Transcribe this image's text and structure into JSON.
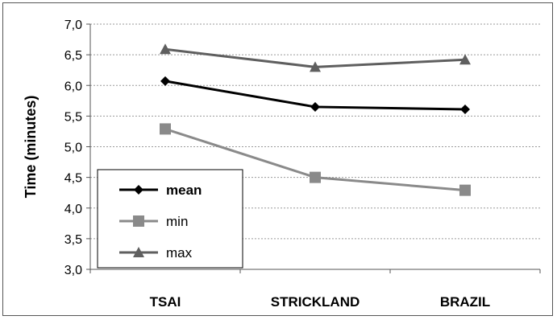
{
  "chart_data": {
    "type": "line",
    "categories": [
      "TSAI",
      "STRICKLAND",
      "BRAZIL"
    ],
    "series": [
      {
        "name": "mean",
        "values": [
          6.07,
          5.65,
          5.61
        ],
        "color": "#000000",
        "marker": "diamond"
      },
      {
        "name": "min",
        "values": [
          5.29,
          4.5,
          4.29
        ],
        "color": "#8a8a8a",
        "marker": "square"
      },
      {
        "name": "max",
        "values": [
          6.59,
          6.3,
          6.42
        ],
        "color": "#5f5f5f",
        "marker": "triangle"
      }
    ],
    "title": "",
    "xlabel": "",
    "ylabel": "Time (minutes)",
    "ylim": [
      3.0,
      7.0
    ],
    "yticks": [
      "3,0",
      "3,5",
      "4,0",
      "4,5",
      "5,0",
      "5,5",
      "6,0",
      "6,5",
      "7,0"
    ],
    "grid": true,
    "legend_position": "bottom-left"
  }
}
